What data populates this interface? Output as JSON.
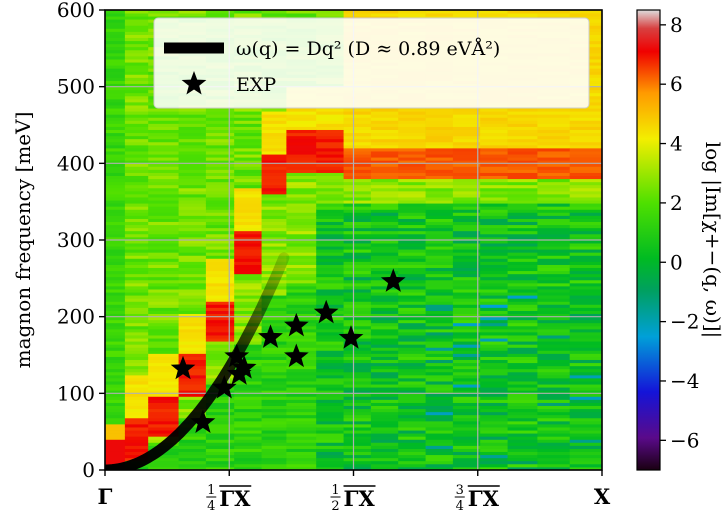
{
  "chart_data": {
    "type": "heatmap",
    "ylabel": "magnon frequency [meV]",
    "ylim": [
      0,
      600
    ],
    "yticks": [
      "0",
      "100",
      "200",
      "300",
      "400",
      "500",
      "600"
    ],
    "xticks": [
      {
        "pos": 0.0,
        "main": "Γ",
        "frac": "",
        "seg": ""
      },
      {
        "pos": 0.25,
        "main": "",
        "frac": "1/4",
        "seg": "ΓX"
      },
      {
        "pos": 0.5,
        "main": "",
        "frac": "1/2",
        "seg": "ΓX"
      },
      {
        "pos": 0.75,
        "main": "",
        "frac": "3/4",
        "seg": "ΓX"
      },
      {
        "pos": 1.0,
        "main": "X",
        "frac": "",
        "seg": ""
      }
    ],
    "grid": true,
    "colorbar": {
      "label": "log |Im[χ+−(q, ω)]|",
      "range": [
        -7,
        8.5
      ],
      "ticks": [
        "−6",
        "−4",
        "−2",
        "0",
        "2",
        "4",
        "6",
        "8"
      ],
      "tick_values": [
        -6,
        -4,
        -2,
        0,
        2,
        4,
        6,
        8
      ]
    },
    "legend": {
      "placement": "top-right",
      "fit_label": "ω(q) = Dq² (D ≈ 0.89 eVÅ²)",
      "exp_label": "EXP"
    },
    "fit": {
      "D_eV_A2": 0.89,
      "q_range": [
        0,
        0.36
      ]
    },
    "exp_points": [
      {
        "q": 0.157,
        "omega": 132
      },
      {
        "q": 0.197,
        "omega": 62
      },
      {
        "q": 0.24,
        "omega": 107
      },
      {
        "q": 0.265,
        "omega": 148
      },
      {
        "q": 0.27,
        "omega": 125
      },
      {
        "q": 0.28,
        "omega": 133
      },
      {
        "q": 0.333,
        "omega": 173
      },
      {
        "q": 0.385,
        "omega": 188
      },
      {
        "q": 0.385,
        "omega": 148
      },
      {
        "q": 0.445,
        "omega": 205
      },
      {
        "q": 0.495,
        "omega": 172
      },
      {
        "q": 0.58,
        "omega": 246
      }
    ],
    "heatmap_columns_q": [
      0.0,
      0.04,
      0.087,
      0.148,
      0.203,
      0.26,
      0.315,
      0.365,
      0.425,
      0.48,
      0.535,
      0.59,
      0.645,
      0.7,
      0.755,
      0.81,
      0.87,
      0.935
    ]
  }
}
